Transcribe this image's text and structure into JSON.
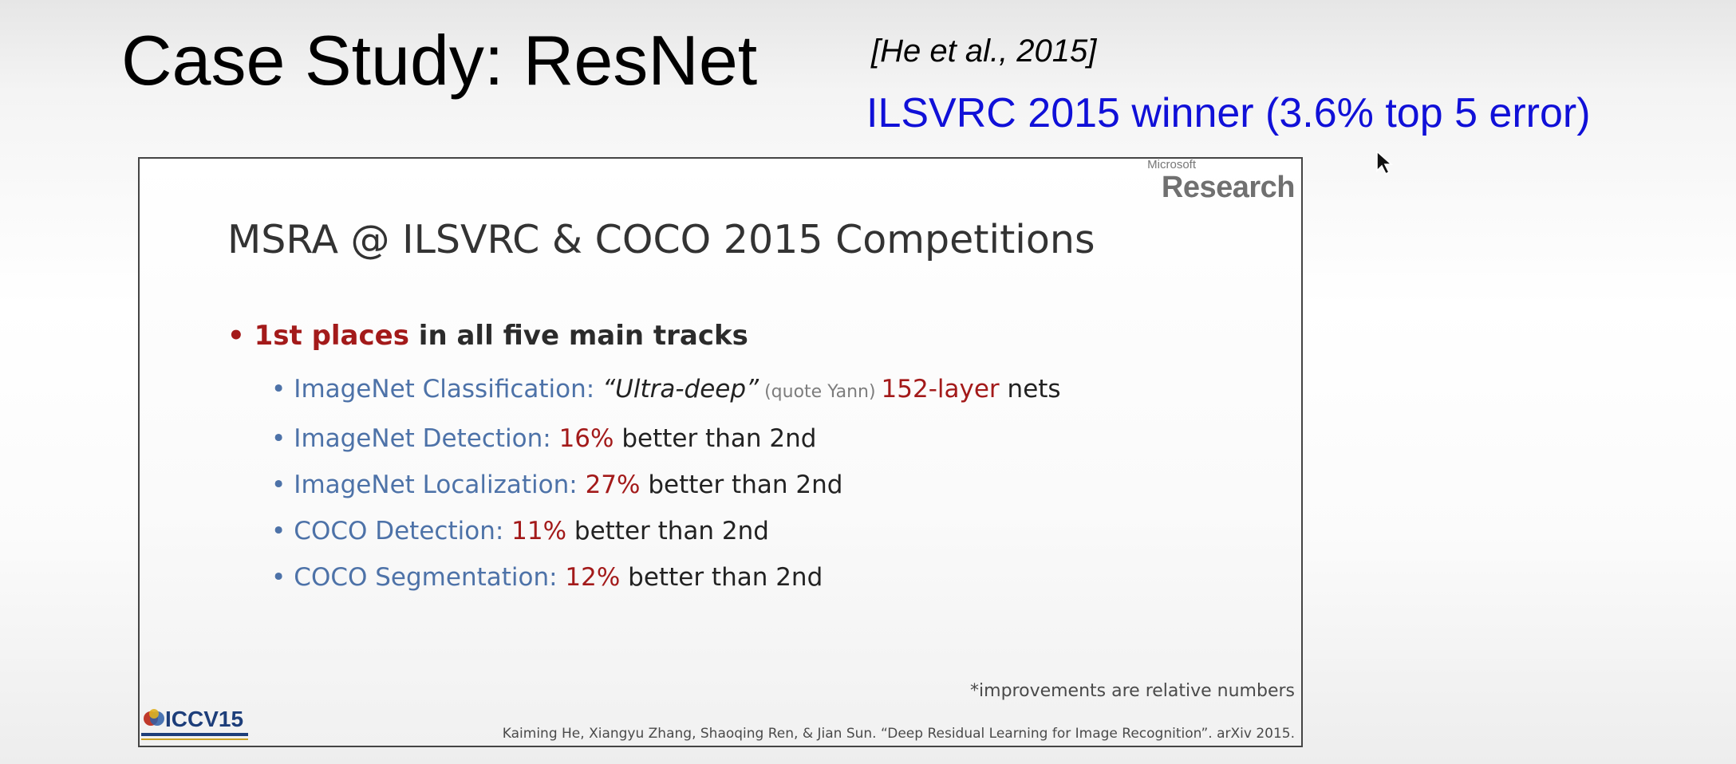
{
  "slide": {
    "title": "Case Study: ResNet",
    "citation": "[He et al., 2015]",
    "winner_note": "ILSVRC 2015 winner (3.6% top 5 error)"
  },
  "embedded_slide": {
    "logo_small": "Microsoft",
    "logo_big": "Research",
    "title": "MSRA @ ILSVRC & COCO 2015 Competitions",
    "main_bullet": {
      "highlight": "1st places",
      "rest": " in all five main tracks"
    },
    "tracks": [
      {
        "name": "ImageNet Classification: ",
        "quote": "“Ultra-deep”",
        "aside": " (quote Yann) ",
        "value": "152-layer",
        "suffix": " nets"
      },
      {
        "name": "ImageNet Detection: ",
        "value": "16%",
        "suffix": " better than 2nd"
      },
      {
        "name": "ImageNet Localization: ",
        "value": "27%",
        "suffix": " better than 2nd"
      },
      {
        "name": "COCO Detection: ",
        "value": "11%",
        "suffix": " better than 2nd"
      },
      {
        "name": "COCO Segmentation: ",
        "value": "12%",
        "suffix": " better than 2nd"
      }
    ],
    "footnote": "*improvements are relative numbers",
    "reference": "Kaiming He, Xiangyu Zhang, Shaoqing Ren, & Jian Sun. “Deep Residual Learning for Image Recognition”. arXiv 2015.",
    "conference_logo": "ICCV15"
  },
  "colors": {
    "title_text": "#000000",
    "winner_blue": "#1010d8",
    "accent_red": "#a31a1a",
    "track_blue": "#4d72a8"
  }
}
